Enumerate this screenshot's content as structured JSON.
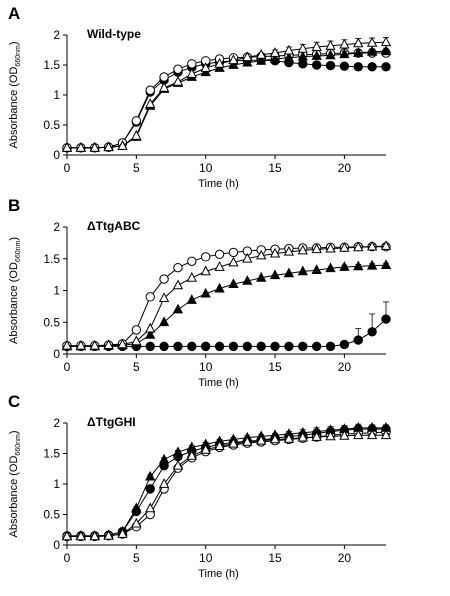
{
  "chart_data": [
    {
      "type": "line",
      "panel_label": "A",
      "title": "Wild-type",
      "xlabel": "Time (h)",
      "ylabel": {
        "main": "Absorbance (OD",
        "sub": "660nm",
        "close": ")"
      },
      "xlim": [
        0,
        23
      ],
      "ylim": [
        0,
        2
      ],
      "xticks": [
        0,
        5,
        10,
        15,
        20
      ],
      "yticks": [
        0,
        0.5,
        1,
        1.5,
        2
      ],
      "x": [
        0,
        1,
        2,
        3,
        4,
        5,
        6,
        7,
        8,
        9,
        10,
        11,
        12,
        13,
        14,
        15,
        16,
        17,
        18,
        19,
        20,
        21,
        22,
        23
      ],
      "series": [
        {
          "marker": "filled-circle",
          "values": [
            0.12,
            0.12,
            0.12,
            0.13,
            0.2,
            0.55,
            1.05,
            1.25,
            1.38,
            1.46,
            1.52,
            1.55,
            1.57,
            1.58,
            1.58,
            1.57,
            1.54,
            1.52,
            1.5,
            1.49,
            1.48,
            1.47,
            1.47,
            1.47
          ],
          "err": [
            0,
            0,
            0,
            0,
            0,
            0,
            0,
            0,
            0,
            0,
            0,
            0,
            0,
            0,
            0,
            0,
            0,
            0,
            0,
            0,
            0,
            0,
            0,
            0
          ]
        },
        {
          "marker": "open-circle",
          "values": [
            0.12,
            0.12,
            0.12,
            0.13,
            0.2,
            0.57,
            1.08,
            1.3,
            1.43,
            1.52,
            1.57,
            1.6,
            1.62,
            1.63,
            1.64,
            1.65,
            1.66,
            1.67,
            1.68,
            1.69,
            1.7,
            1.7,
            1.7,
            1.7
          ],
          "err": [
            0,
            0,
            0,
            0,
            0,
            0,
            0,
            0,
            0,
            0,
            0,
            0,
            0,
            0,
            0,
            0,
            0,
            0,
            0,
            0,
            0.03,
            0.03,
            0.03,
            0.03
          ]
        },
        {
          "marker": "filled-triangle",
          "values": [
            0.12,
            0.12,
            0.12,
            0.13,
            0.15,
            0.3,
            0.82,
            1.1,
            1.2,
            1.3,
            1.38,
            1.45,
            1.5,
            1.54,
            1.57,
            1.6,
            1.62,
            1.64,
            1.65,
            1.66,
            1.68,
            1.7,
            1.72,
            1.73
          ],
          "err": [
            0,
            0,
            0,
            0,
            0,
            0,
            0,
            0,
            0,
            0,
            0,
            0,
            0,
            0,
            0,
            0,
            0,
            0,
            0,
            0,
            0.05,
            0.05,
            0.05,
            0.05
          ]
        },
        {
          "marker": "open-triangle",
          "values": [
            0.12,
            0.12,
            0.12,
            0.13,
            0.15,
            0.32,
            0.85,
            1.12,
            1.22,
            1.35,
            1.45,
            1.52,
            1.58,
            1.63,
            1.67,
            1.7,
            1.74,
            1.77,
            1.8,
            1.82,
            1.84,
            1.86,
            1.87,
            1.88
          ],
          "err": [
            0,
            0,
            0,
            0,
            0,
            0,
            0,
            0,
            0,
            0,
            0,
            0,
            0,
            0,
            0,
            0.05,
            0.06,
            0.07,
            0.08,
            0.08,
            0.08,
            0.08,
            0.08,
            0.08
          ]
        }
      ]
    },
    {
      "type": "line",
      "panel_label": "B",
      "title": "ΔTtgABC",
      "xlabel": "Time (h)",
      "ylabel": {
        "main": "Absorbance (OD",
        "sub": "660nm",
        "close": ")"
      },
      "xlim": [
        0,
        23
      ],
      "ylim": [
        0,
        2
      ],
      "xticks": [
        0,
        5,
        10,
        15,
        20
      ],
      "yticks": [
        0,
        0.5,
        1,
        1.5,
        2
      ],
      "x": [
        0,
        1,
        2,
        3,
        4,
        5,
        6,
        7,
        8,
        9,
        10,
        11,
        12,
        13,
        14,
        15,
        16,
        17,
        18,
        19,
        20,
        21,
        22,
        23
      ],
      "series": [
        {
          "marker": "filled-circle",
          "values": [
            0.12,
            0.12,
            0.12,
            0.12,
            0.12,
            0.12,
            0.12,
            0.12,
            0.12,
            0.12,
            0.12,
            0.12,
            0.12,
            0.12,
            0.12,
            0.12,
            0.12,
            0.12,
            0.12,
            0.12,
            0.15,
            0.22,
            0.35,
            0.55
          ],
          "err": [
            0,
            0,
            0,
            0,
            0,
            0,
            0,
            0,
            0,
            0,
            0,
            0,
            0,
            0,
            0,
            0,
            0,
            0,
            0,
            0,
            0.04,
            0.18,
            0.28,
            0.27
          ]
        },
        {
          "marker": "open-circle",
          "values": [
            0.13,
            0.13,
            0.13,
            0.14,
            0.16,
            0.38,
            0.9,
            1.18,
            1.36,
            1.46,
            1.53,
            1.57,
            1.6,
            1.62,
            1.64,
            1.65,
            1.66,
            1.67,
            1.67,
            1.68,
            1.68,
            1.69,
            1.69,
            1.69
          ],
          "err": [
            0,
            0,
            0,
            0,
            0,
            0,
            0,
            0,
            0,
            0,
            0,
            0,
            0,
            0,
            0,
            0,
            0,
            0,
            0,
            0,
            0,
            0.03,
            0.03,
            0.03
          ]
        },
        {
          "marker": "filled-triangle",
          "values": [
            0.12,
            0.12,
            0.12,
            0.13,
            0.14,
            0.16,
            0.3,
            0.5,
            0.7,
            0.85,
            0.95,
            1.03,
            1.1,
            1.15,
            1.2,
            1.24,
            1.27,
            1.3,
            1.32,
            1.35,
            1.37,
            1.38,
            1.39,
            1.4
          ],
          "err": [
            0,
            0,
            0,
            0,
            0,
            0,
            0,
            0,
            0,
            0,
            0,
            0,
            0,
            0,
            0,
            0,
            0,
            0,
            0,
            0,
            0.03,
            0.03,
            0.03,
            0.03
          ]
        },
        {
          "marker": "open-triangle",
          "values": [
            0.13,
            0.13,
            0.13,
            0.14,
            0.15,
            0.2,
            0.4,
            0.88,
            1.08,
            1.2,
            1.3,
            1.37,
            1.44,
            1.5,
            1.55,
            1.58,
            1.61,
            1.63,
            1.65,
            1.66,
            1.67,
            1.68,
            1.69,
            1.7
          ],
          "err": [
            0,
            0,
            0,
            0,
            0,
            0,
            0,
            0,
            0,
            0,
            0,
            0,
            0,
            0,
            0,
            0,
            0,
            0,
            0,
            0,
            0,
            0.03,
            0.03,
            0.03
          ]
        }
      ]
    },
    {
      "type": "line",
      "panel_label": "C",
      "title": "ΔTtgGHI",
      "xlabel": "Time (h)",
      "ylabel": {
        "main": "Absorbance (OD",
        "sub": "660nm",
        "close": ")"
      },
      "xlim": [
        0,
        23
      ],
      "ylim": [
        0,
        2
      ],
      "xticks": [
        0,
        5,
        10,
        15,
        20
      ],
      "yticks": [
        0,
        0.5,
        1,
        1.5,
        2
      ],
      "x": [
        0,
        1,
        2,
        3,
        4,
        5,
        6,
        7,
        8,
        9,
        10,
        11,
        12,
        13,
        14,
        15,
        16,
        17,
        18,
        19,
        20,
        21,
        22,
        23
      ],
      "series": [
        {
          "marker": "filled-circle",
          "values": [
            0.15,
            0.15,
            0.15,
            0.16,
            0.22,
            0.55,
            0.92,
            1.3,
            1.45,
            1.54,
            1.6,
            1.65,
            1.68,
            1.7,
            1.72,
            1.75,
            1.78,
            1.8,
            1.83,
            1.86,
            1.88,
            1.9,
            1.9,
            1.9
          ],
          "err": [
            0,
            0,
            0,
            0,
            0.03,
            0.03,
            0.03,
            0.03,
            0.03,
            0.03,
            0.03,
            0.03,
            0.03,
            0.03,
            0.03,
            0.03,
            0.04,
            0.05,
            0.06,
            0.06,
            0.06,
            0.06,
            0.05,
            0.05
          ]
        },
        {
          "marker": "open-circle",
          "values": [
            0.14,
            0.14,
            0.14,
            0.15,
            0.18,
            0.3,
            0.5,
            0.92,
            1.26,
            1.43,
            1.53,
            1.6,
            1.64,
            1.67,
            1.69,
            1.71,
            1.73,
            1.75,
            1.77,
            1.8,
            1.82,
            1.83,
            1.84,
            1.85
          ],
          "err": [
            0,
            0,
            0,
            0,
            0,
            0,
            0,
            0,
            0,
            0,
            0,
            0,
            0,
            0,
            0,
            0,
            0,
            0,
            0,
            0,
            0.03,
            0.03,
            0.03,
            0.03
          ]
        },
        {
          "marker": "filled-triangle",
          "values": [
            0.15,
            0.15,
            0.15,
            0.16,
            0.22,
            0.6,
            1.12,
            1.4,
            1.52,
            1.6,
            1.65,
            1.7,
            1.73,
            1.76,
            1.78,
            1.8,
            1.82,
            1.84,
            1.86,
            1.88,
            1.9,
            1.92,
            1.92,
            1.92
          ],
          "err": [
            0,
            0,
            0,
            0,
            0.03,
            0.03,
            0.03,
            0.03,
            0.03,
            0.03,
            0.03,
            0.03,
            0.03,
            0.03,
            0.03,
            0.03,
            0.04,
            0.05,
            0.06,
            0.06,
            0.06,
            0.06,
            0.05,
            0.05
          ]
        },
        {
          "marker": "open-triangle",
          "values": [
            0.14,
            0.14,
            0.14,
            0.15,
            0.18,
            0.35,
            0.6,
            1.0,
            1.3,
            1.46,
            1.56,
            1.62,
            1.66,
            1.69,
            1.71,
            1.73,
            1.74,
            1.76,
            1.77,
            1.78,
            1.79,
            1.8,
            1.8,
            1.8
          ],
          "err": [
            0,
            0,
            0,
            0,
            0,
            0,
            0,
            0,
            0,
            0,
            0,
            0,
            0,
            0,
            0,
            0,
            0,
            0,
            0,
            0,
            0.03,
            0.03,
            0.03,
            0.03
          ]
        }
      ]
    }
  ]
}
